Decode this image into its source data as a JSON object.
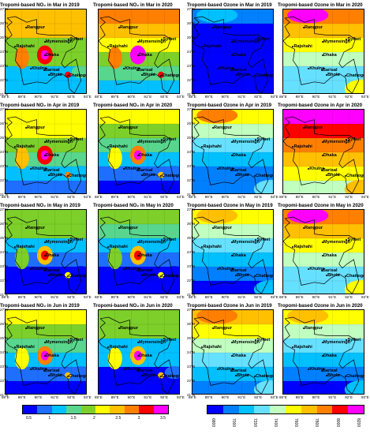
{
  "panels": [
    {
      "title": "Tropomi-based NO₂ in Mar in 2019",
      "type": "no2",
      "level": 2.2
    },
    {
      "title": "Tropomi-based NO₂ in Mar in 2020",
      "type": "no2",
      "level": 2.4
    },
    {
      "title": "Tropomi-based Ozone in Mar in 2019",
      "type": "ozone",
      "level": 0.1
    },
    {
      "title": "Tropomi-based Ozone in Mar in 2020",
      "type": "ozone",
      "level": 0.75
    },
    {
      "title": "Tropomi-based NO₂ in Apr in 2019",
      "type": "no2",
      "level": 1.9
    },
    {
      "title": "Tropomi-based NO₂ in Apr in 2020",
      "type": "no2",
      "level": 1.6
    },
    {
      "title": "Tropomi-based Ozone in Apr in 2019",
      "type": "ozone",
      "level": 0.55
    },
    {
      "title": "Tropomi-based Ozone in Apr in 2020",
      "type": "ozone",
      "level": 0.9
    },
    {
      "title": "Tropomi-based NO₂ in May in 2019",
      "type": "no2",
      "level": 1.4
    },
    {
      "title": "Tropomi-based NO₂ in May in 2020",
      "type": "no2",
      "level": 1.3
    },
    {
      "title": "Tropomi-based Ozone in May in 2019",
      "type": "ozone",
      "level": 0.5
    },
    {
      "title": "Tropomi-based Ozone in May in 2020",
      "type": "ozone",
      "level": 0.75
    },
    {
      "title": "Tropomi-based NO₂ in Jun in 2019",
      "type": "no2",
      "level": 1.7
    },
    {
      "title": "Tropomi-based NO₂ in Jun in 2020",
      "type": "no2",
      "level": 1.5
    },
    {
      "title": "Tropomi-based Ozone in Jun in 2019",
      "type": "ozone",
      "level": 0.6
    },
    {
      "title": "Tropomi-based Ozone in Jun in 2020",
      "type": "ozone",
      "level": 0.5
    }
  ],
  "cities": [
    {
      "name": "Rangpur",
      "lon": 89.25,
      "lat": 25.75
    },
    {
      "name": "Mymensingh",
      "lon": 90.4,
      "lat": 24.75
    },
    {
      "name": "Rajshahi",
      "lon": 88.6,
      "lat": 24.37
    },
    {
      "name": "Sylhet",
      "lon": 91.87,
      "lat": 24.9
    },
    {
      "name": "Dhaka",
      "lon": 90.4,
      "lat": 23.8
    },
    {
      "name": "Khulna",
      "lon": 89.55,
      "lat": 22.85
    },
    {
      "name": "Barisal",
      "lon": 90.35,
      "lat": 22.7
    },
    {
      "name": "Chattogram",
      "lon": 91.8,
      "lat": 22.35
    },
    {
      "name": "Bhola",
      "lon": 90.65,
      "lat": 22.4
    }
  ],
  "axes": {
    "lat_labels": [
      "27°N",
      "26°N",
      "25°N",
      "24°N",
      "23°N",
      "22°N",
      "21°N"
    ],
    "lon_labels": [
      "88°E",
      "89°E",
      "90°E",
      "91°E",
      "92°E",
      "93°E"
    ]
  },
  "no2_colorbar": {
    "colors": [
      "#0000ff",
      "#1e6fff",
      "#00c0ff",
      "#58d68d",
      "#7dcf2a",
      "#ffff00",
      "#ffc000",
      "#ff7f00",
      "#ff0000",
      "#ff00ff"
    ],
    "ticks": [
      "0.5",
      "1",
      "1.5",
      "2",
      "2.5",
      "3",
      "3.5"
    ]
  },
  "ozone_colorbar": {
    "colors": [
      "#0000ff",
      "#0080ff",
      "#00c0ff",
      "#66e0ff",
      "#c0ffc0",
      "#ffff00",
      "#ffc000",
      "#ff7f00",
      "#ff0000",
      "#ff00ff"
    ],
    "ticks": [
      "6800",
      "7000",
      "7200",
      "7400",
      "7600",
      "7800",
      "8000",
      "8200"
    ]
  }
}
